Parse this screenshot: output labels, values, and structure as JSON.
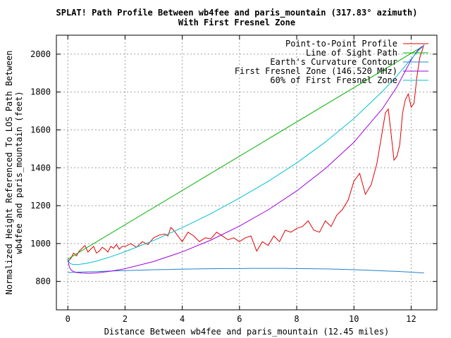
{
  "chart_data": {
    "type": "line",
    "title": "SPLAT! Path Profile Between wb4fee and paris_mountain (317.83° azimuth)",
    "subtitle": "With First Fresnel Zone",
    "xlabel": "Distance Between wb4fee and paris_mountain (12.45 miles)",
    "ylabel_line1": "Normalized Height Referenced To LOS Path Between",
    "ylabel_line2": "wb4fee and paris_mountain (feet)",
    "xlim": [
      -0.4,
      12.9
    ],
    "ylim": [
      650,
      2100
    ],
    "xticks": [
      0,
      2,
      4,
      6,
      8,
      10,
      12
    ],
    "yticks": [
      800,
      1000,
      1200,
      1400,
      1600,
      1800,
      2000
    ],
    "grid": true,
    "legend_position": "top-right",
    "series": [
      {
        "name": "Point-to-Point Profile",
        "color": "#e00000",
        "x": [
          0,
          0.1,
          0.2,
          0.3,
          0.4,
          0.5,
          0.6,
          0.7,
          0.8,
          0.9,
          1.0,
          1.1,
          1.2,
          1.3,
          1.4,
          1.5,
          1.6,
          1.7,
          1.8,
          1.9,
          2.0,
          2.2,
          2.4,
          2.6,
          2.8,
          3.0,
          3.2,
          3.4,
          3.5,
          3.6,
          3.7,
          3.8,
          4.0,
          4.2,
          4.4,
          4.6,
          4.8,
          5.0,
          5.2,
          5.4,
          5.6,
          5.8,
          6.0,
          6.2,
          6.4,
          6.6,
          6.8,
          7.0,
          7.2,
          7.4,
          7.6,
          7.8,
          8.0,
          8.2,
          8.4,
          8.6,
          8.8,
          9.0,
          9.2,
          9.4,
          9.6,
          9.8,
          10.0,
          10.2,
          10.4,
          10.6,
          10.8,
          11.0,
          11.1,
          11.2,
          11.3,
          11.4,
          11.5,
          11.6,
          11.7,
          11.8,
          11.9,
          12.0,
          12.1,
          12.2,
          12.3,
          12.45
        ],
        "y": [
          905,
          920,
          950,
          935,
          960,
          975,
          990,
          955,
          970,
          985,
          950,
          960,
          980,
          970,
          955,
          985,
          975,
          995,
          970,
          985,
          985,
          1000,
          980,
          1010,
          995,
          1030,
          1045,
          1050,
          1040,
          1085,
          1070,
          1050,
          1010,
          1060,
          1040,
          1010,
          1030,
          1025,
          1060,
          1040,
          1020,
          1030,
          1010,
          1030,
          1040,
          960,
          1010,
          990,
          1040,
          1010,
          1070,
          1060,
          1080,
          1090,
          1120,
          1070,
          1060,
          1120,
          1090,
          1150,
          1180,
          1230,
          1330,
          1370,
          1260,
          1310,
          1420,
          1600,
          1690,
          1710,
          1580,
          1440,
          1460,
          1520,
          1690,
          1760,
          1790,
          1720,
          1740,
          1880,
          1980,
          2050
        ]
      },
      {
        "name": "Line of Sight Path",
        "color": "#00b000",
        "x": [
          0,
          12.45
        ],
        "y": [
          918,
          2045
        ]
      },
      {
        "name": "Earth's Curvature Contour",
        "color": "#2080d0",
        "x": [
          0,
          0.5,
          1,
          1.5,
          2,
          2.5,
          3,
          3.5,
          4,
          4.5,
          5,
          5.5,
          6,
          6.5,
          7,
          7.5,
          8,
          8.5,
          9,
          9.5,
          10,
          10.5,
          11,
          11.5,
          12,
          12.45
        ],
        "y": [
          847,
          850,
          852,
          855,
          857,
          859,
          862,
          863,
          865,
          866,
          867,
          868,
          868,
          869,
          869,
          869,
          868,
          867,
          866,
          864,
          862,
          859,
          856,
          853,
          849,
          845
        ]
      },
      {
        "name": "First Fresnel Zone (146.520 MHz)",
        "color": "#a000e0",
        "x": [
          0,
          0.05,
          0.1,
          0.2,
          0.3,
          0.5,
          0.75,
          1,
          1.5,
          2,
          3,
          4,
          5,
          6,
          7,
          8,
          9,
          10,
          11,
          11.5,
          12,
          12.2,
          12.35,
          12.45
        ],
        "y": [
          918,
          878,
          862,
          852,
          847,
          844,
          843,
          845,
          854,
          867,
          905,
          956,
          1018,
          1092,
          1178,
          1278,
          1396,
          1535,
          1713,
          1827,
          1970,
          2015,
          2038,
          2045
        ]
      },
      {
        "name": "60% of First Fresnel Zone",
        "color": "#00c0d0",
        "x": [
          0,
          0.05,
          0.1,
          0.2,
          0.4,
          0.6,
          1,
          1.5,
          2,
          3,
          4,
          5,
          6,
          7,
          8,
          9,
          10,
          11,
          11.5,
          12,
          12.3,
          12.45
        ],
        "y": [
          918,
          900,
          893,
          889,
          890,
          894,
          907,
          930,
          957,
          1016,
          1084,
          1158,
          1240,
          1328,
          1426,
          1536,
          1660,
          1804,
          1885,
          1975,
          2025,
          2045
        ]
      }
    ]
  }
}
